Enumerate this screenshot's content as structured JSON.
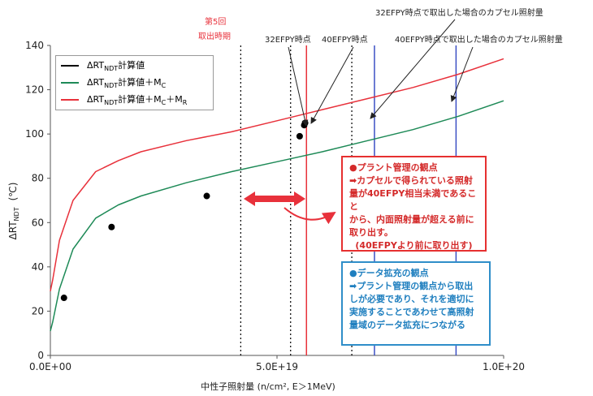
{
  "chart_data": {
    "type": "line",
    "xlabel": "中性子照射量 (n/cm², E＞1MeV)",
    "ylabel": "ΔRT_NDT (℃)",
    "xlim": [
      0,
      1e+20
    ],
    "ylim": [
      0,
      140
    ],
    "x_ticks": [
      "0.0E+00",
      "5.0E+19",
      "1.0E+20"
    ],
    "y_ticks": [
      "0",
      "20",
      "40",
      "60",
      "80",
      "100",
      "120",
      "140"
    ],
    "grid": false,
    "legend_position": "top-left",
    "series": [
      {
        "name": "ΔRT_NDT計算値",
        "color": "#000000",
        "hidden_in_plot": true
      },
      {
        "name": "ΔRT_NDT計算値＋M_C",
        "color": "#1e8a57",
        "x": [
          0.0,
          5e+17,
          2e+18,
          5e+18,
          1e+19,
          1.5e+19,
          2e+19,
          3e+19,
          4e+19,
          5e+19,
          6e+19,
          7e+19,
          8e+19,
          9e+19,
          1e+20
        ],
        "y": [
          11,
          15,
          30,
          48,
          62,
          68,
          72,
          78,
          83,
          87.5,
          92,
          97,
          102,
          108,
          115
        ]
      },
      {
        "name": "ΔRT_NDT計算値＋M_C＋M_R",
        "color": "#e8313b",
        "x": [
          0.0,
          5e+17,
          2e+18,
          5e+18,
          1e+19,
          1.5e+19,
          2e+19,
          3e+19,
          4e+19,
          5e+19,
          6e+19,
          7e+19,
          8e+19,
          9e+19,
          1e+20
        ],
        "y": [
          29,
          34,
          52,
          70,
          83,
          88,
          92,
          97,
          101,
          106,
          111,
          116,
          121,
          127,
          134
        ]
      }
    ],
    "points": {
      "x": [
        3e+18,
        1.35e+19,
        3.45e+19,
        5.5e+19,
        5.6e+19,
        5.62e+19
      ],
      "y": [
        26,
        58,
        72,
        99,
        104,
        105
      ]
    },
    "vlines": [
      {
        "x": 4.2e+19,
        "style": "dotted",
        "color": "#000000"
      },
      {
        "x": 5.3e+19,
        "style": "dotted",
        "color": "#000000"
      },
      {
        "x": 5.65e+19,
        "style": "solid",
        "color": "#e8313b"
      },
      {
        "x": 6.65e+19,
        "style": "dotted",
        "color": "#000000"
      },
      {
        "x": 7.15e+19,
        "style": "solid",
        "color": "#3b4fc4"
      },
      {
        "x": 8.95e+19,
        "style": "solid",
        "color": "#3b4fc4"
      }
    ],
    "annotations": {
      "fifth_line1": "第5回",
      "fifth_line2": "取出時期",
      "a32": "32EFPY時点",
      "a40": "40EFPY時点",
      "a32_top": "32EFPY時点で取出した場合のカプセル照射量",
      "a40_top": "40EFPY時点で取出した場合のカプセル照射量"
    }
  },
  "legend_items": [
    {
      "label": "ΔRT",
      "sub": "NDT",
      "suffix": "計算値",
      "extra": "",
      "extra_sub": "",
      "extra2": "",
      "extra2_sub": "",
      "color": "#000000"
    },
    {
      "label": "ΔRT",
      "sub": "NDT",
      "suffix": "計算値＋M",
      "extra": "",
      "extra_sub": "C",
      "extra2": "",
      "extra2_sub": "",
      "color": "#1e8a57"
    },
    {
      "label": "ΔRT",
      "sub": "NDT",
      "suffix": "計算値＋M",
      "extra": "",
      "extra_sub": "C",
      "extra2": "＋M",
      "extra2_sub": "R",
      "color": "#e8313b"
    }
  ],
  "box_red": {
    "title": "●プラント管理の観点",
    "lines": [
      "➡カプセルで得られている照射",
      "量が40EFPY相当未満であること",
      "から、内面照射量が超える前に",
      "取り出す。"
    ],
    "note": "(40EFPYより前に取り出す)"
  },
  "box_blue": {
    "title": "●データ拡充の観点",
    "lines": [
      "➡プラント管理の観点から取出",
      "しが必要であり、それを適切に",
      "実施することであわせて高照射",
      "量域のデータ拡充につながる"
    ]
  },
  "axis": {
    "ylabel_main": "ΔRT",
    "ylabel_sub": "NDT",
    "ylabel_unit": "(℃)",
    "xlabel": "中性子照射量 (n/cm², E＞1MeV)"
  }
}
